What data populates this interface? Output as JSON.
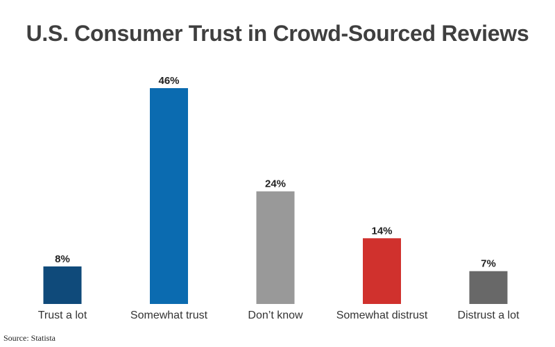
{
  "chart_data": {
    "type": "bar",
    "title": "U.S. Consumer Trust in Crowd-Sourced Reviews",
    "categories": [
      "Trust a lot",
      "Somewhat trust",
      "Don’t know",
      "Somewhat distrust",
      "Distrust a lot"
    ],
    "values": [
      8,
      46,
      24,
      14,
      7
    ],
    "value_labels": [
      "8%",
      "46%",
      "24%",
      "14%",
      "7%"
    ],
    "colors": [
      "#0f4a7a",
      "#0b6bb0",
      "#999999",
      "#d0312d",
      "#686868"
    ],
    "xlabel": "",
    "ylabel": "",
    "ylim": [
      0,
      46
    ],
    "grid": false,
    "legend": "none"
  },
  "footer": {
    "source": "Source: Statista"
  }
}
